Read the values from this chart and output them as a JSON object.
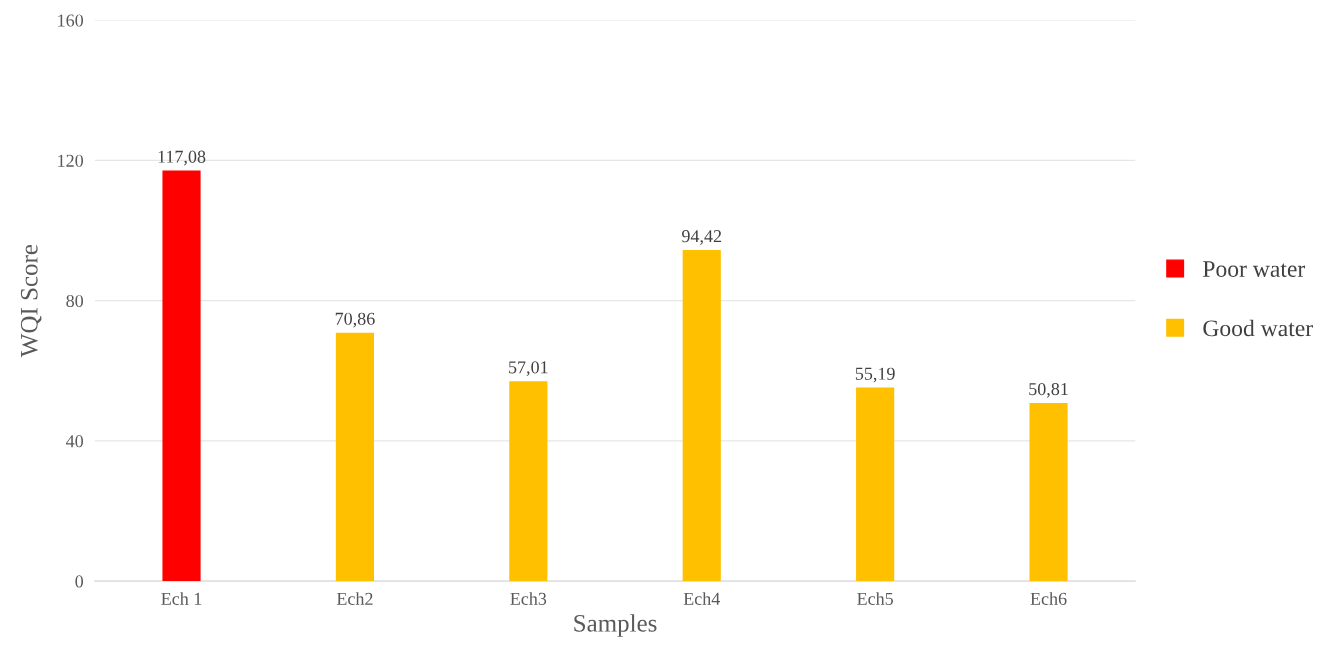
{
  "chart_data": {
    "type": "bar",
    "xlabel": "Samples",
    "ylabel": "WQI Score",
    "categories": [
      "Ech 1",
      "Ech2",
      "Ech3",
      "Ech4",
      "Ech5",
      "Ech6"
    ],
    "series": [
      {
        "name": "Poor water",
        "color": "#ff0000",
        "values": [
          117.08,
          null,
          null,
          null,
          null,
          null
        ],
        "value_labels": [
          "117,08",
          null,
          null,
          null,
          null,
          null
        ]
      },
      {
        "name": "Good water",
        "color": "#ffc000",
        "values": [
          null,
          70.86,
          57.01,
          94.42,
          55.19,
          50.81
        ],
        "value_labels": [
          null,
          "70,86",
          "57,01",
          "94,42",
          "55,19",
          "50,81"
        ]
      }
    ],
    "ylim": [
      0,
      160
    ],
    "yticks": [
      0,
      40,
      80,
      120,
      160
    ],
    "grid": "y",
    "legend": "right"
  }
}
